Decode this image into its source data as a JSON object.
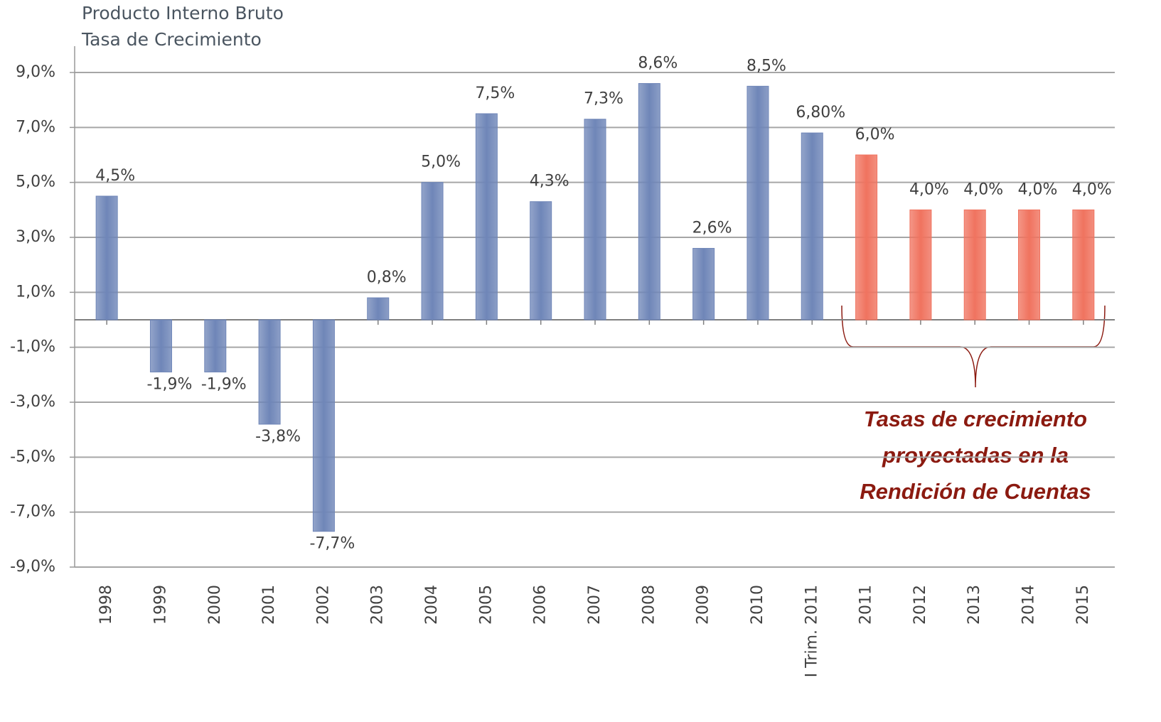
{
  "chart_data": {
    "type": "bar",
    "title": "Producto Interno Bruto",
    "subtitle": "Tasa de Crecimiento",
    "categories": [
      "1998",
      "1999",
      "2000",
      "2001",
      "2002",
      "2003",
      "2004",
      "2005",
      "2006",
      "2007",
      "2008",
      "2009",
      "2010",
      "I Trim. 2011",
      "2011",
      "2012",
      "2013",
      "2014",
      "2015"
    ],
    "values": [
      4.5,
      -1.9,
      -1.9,
      -3.8,
      -7.7,
      0.8,
      5.0,
      7.5,
      4.3,
      7.3,
      8.6,
      2.6,
      8.5,
      6.8,
      6.0,
      4.0,
      4.0,
      4.0,
      4.0
    ],
    "value_labels": [
      "4,5%",
      "-1,9%",
      "-1,9%",
      "-3,8%",
      "-7,7%",
      "0,8%",
      "5,0%",
      "7,5%",
      "4,3%",
      "7,3%",
      "8,6%",
      "2,6%",
      "8,5%",
      "6,80%",
      "6,0%",
      "4,0%",
      "4,0%",
      "4,0%",
      "4,0%"
    ],
    "colors": [
      "#6f86b8",
      "#6f86b8",
      "#6f86b8",
      "#6f86b8",
      "#6f86b8",
      "#6f86b8",
      "#6f86b8",
      "#6f86b8",
      "#6f86b8",
      "#6f86b8",
      "#6f86b8",
      "#6f86b8",
      "#6f86b8",
      "#6f86b8",
      "#f0735f",
      "#f0735f",
      "#f0735f",
      "#f0735f",
      "#f0735f"
    ],
    "ylim": [
      -9,
      9
    ],
    "yticks": [
      {
        "value": -9,
        "label": "-9,0%"
      },
      {
        "value": -7,
        "label": "-7,0%"
      },
      {
        "value": -5,
        "label": "-5,0%"
      },
      {
        "value": -3,
        "label": "-3,0%"
      },
      {
        "value": -1,
        "label": "-1,0%"
      },
      {
        "value": 1,
        "label": "1,0%"
      },
      {
        "value": 3,
        "label": "3,0%"
      },
      {
        "value": 5,
        "label": "5,0%"
      },
      {
        "value": 7,
        "label": "7,0%"
      },
      {
        "value": 9,
        "label": "9,0%"
      }
    ],
    "grid": true,
    "annotation": [
      "Tasas de crecimiento",
      "proyectadas en la",
      "Rendición de Cuentas"
    ]
  }
}
